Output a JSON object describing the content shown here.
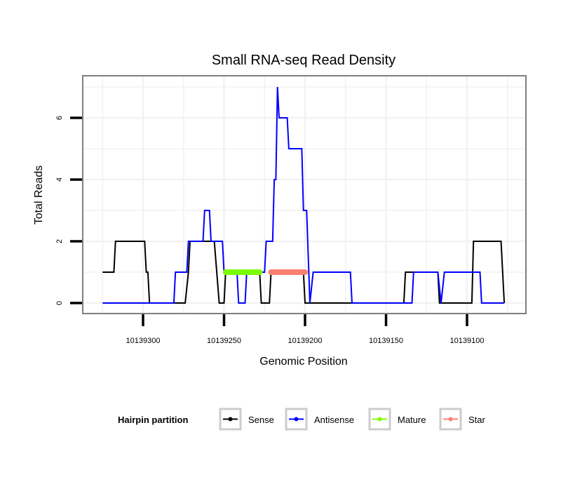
{
  "chart_data": {
    "type": "line",
    "title": "Small RNA-seq Read Density",
    "xlabel": "Genomic Position",
    "ylabel": "Total Reads",
    "xlim": [
      10139337,
      10139064
    ],
    "x_reversed": true,
    "ylim": [
      -0.35,
      7.35
    ],
    "xticks": [
      10139300,
      10139250,
      10139200,
      10139150,
      10139100
    ],
    "xtick_labels": [
      "10139300",
      "10139250",
      "10139200",
      "10139150",
      "10139100"
    ],
    "yticks": [
      0,
      2,
      4,
      6
    ],
    "ytick_labels": [
      "0",
      "2",
      "4",
      "6"
    ],
    "grid": true,
    "legend": {
      "title": "Hairpin partition",
      "placement": "bottom",
      "entries": [
        {
          "label": "Sense",
          "color": "#000000"
        },
        {
          "label": "Antisense",
          "color": "#0000ff"
        },
        {
          "label": "Mature",
          "color": "#7cfc00"
        },
        {
          "label": "Star",
          "color": "#fa8072"
        }
      ]
    },
    "series": [
      {
        "name": "Sense",
        "color": "#000000",
        "points": [
          [
            10139325,
            1
          ],
          [
            10139318,
            1
          ],
          [
            10139317,
            2
          ],
          [
            10139299,
            2
          ],
          [
            10139298,
            1
          ],
          [
            10139297,
            1
          ],
          [
            10139296,
            0
          ],
          [
            10139274,
            0
          ],
          [
            10139272,
            1
          ],
          [
            10139271,
            2
          ],
          [
            10139256,
            2
          ],
          [
            10139253,
            0
          ],
          [
            10139250,
            0
          ],
          [
            10139249,
            1
          ],
          [
            10139228,
            1
          ],
          [
            10139227,
            0
          ],
          [
            10139222,
            0
          ],
          [
            10139221,
            1
          ],
          [
            10139201,
            1
          ],
          [
            10139200,
            0
          ],
          [
            10139139,
            0
          ],
          [
            10139138,
            1
          ],
          [
            10139118,
            1
          ],
          [
            10139117,
            0
          ],
          [
            10139097,
            0
          ],
          [
            10139096,
            2
          ],
          [
            10139079,
            2
          ],
          [
            10139077,
            0
          ]
        ]
      },
      {
        "name": "Antisense",
        "color": "#0000ff",
        "points": [
          [
            10139325,
            0
          ],
          [
            10139281,
            0
          ],
          [
            10139280,
            1
          ],
          [
            10139273,
            1
          ],
          [
            10139272,
            2
          ],
          [
            10139263,
            2
          ],
          [
            10139262,
            3
          ],
          [
            10139259,
            3
          ],
          [
            10139258,
            2
          ],
          [
            10139251,
            2
          ],
          [
            10139250,
            1
          ],
          [
            10139242,
            1
          ],
          [
            10139241,
            0
          ],
          [
            10139237,
            0
          ],
          [
            10139236,
            1
          ],
          [
            10139225,
            1
          ],
          [
            10139224,
            2
          ],
          [
            10139220,
            2
          ],
          [
            10139219,
            4
          ],
          [
            10139218,
            4
          ],
          [
            10139217,
            7
          ],
          [
            10139216,
            6
          ],
          [
            10139211,
            6
          ],
          [
            10139210,
            5
          ],
          [
            10139202,
            5
          ],
          [
            10139201,
            3
          ],
          [
            10139199,
            3
          ],
          [
            10139197,
            0
          ],
          [
            10139195,
            1
          ],
          [
            10139172,
            1
          ],
          [
            10139171,
            0
          ],
          [
            10139134,
            0
          ],
          [
            10139133,
            1
          ],
          [
            10139118,
            1
          ],
          [
            10139116,
            0
          ],
          [
            10139114,
            1
          ],
          [
            10139092,
            1
          ],
          [
            10139091,
            0
          ],
          [
            10139077,
            0
          ]
        ]
      },
      {
        "name": "Mature",
        "color": "#7cfc00",
        "points": [
          [
            10139249,
            1
          ],
          [
            10139228,
            1
          ]
        ]
      },
      {
        "name": "Star",
        "color": "#fa8072",
        "points": [
          [
            10139221,
            1
          ],
          [
            10139200,
            1
          ]
        ]
      }
    ]
  }
}
